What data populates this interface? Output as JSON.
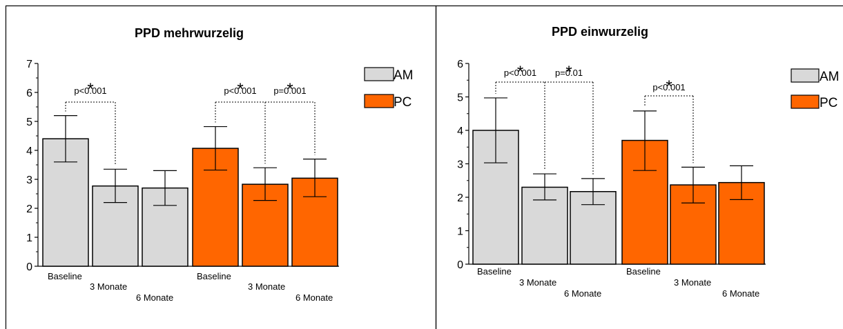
{
  "colors": {
    "am": "#d9d9d9",
    "pc": "#ff6600",
    "axis": "#000000",
    "frame": "#000000"
  },
  "chart_data": [
    {
      "type": "bar",
      "title": "PPD mehrwurzelig",
      "ylim": [
        0,
        7
      ],
      "yticks": [
        "0",
        "1",
        "2",
        "3",
        "4",
        "5",
        "6",
        "7"
      ],
      "legend": {
        "placement": "right",
        "entries": [
          {
            "name": "AM",
            "color": "#d9d9d9"
          },
          {
            "name": "PC",
            "color": "#ff6600"
          }
        ]
      },
      "bars": [
        {
          "label": "Baseline",
          "group": "AM",
          "value": 4.4,
          "err_low": 3.6,
          "err_high": 5.2
        },
        {
          "label": "3 Monate",
          "group": "AM",
          "value": 2.77,
          "err_low": 2.2,
          "err_high": 3.35
        },
        {
          "label": "6 Monate",
          "group": "AM",
          "value": 2.7,
          "err_low": 2.1,
          "err_high": 3.3
        },
        {
          "label": "Baseline",
          "group": "PC",
          "value": 4.07,
          "err_low": 3.32,
          "err_high": 4.82
        },
        {
          "label": "3 Monate",
          "group": "PC",
          "value": 2.83,
          "err_low": 2.27,
          "err_high": 3.4
        },
        {
          "label": "6 Monate",
          "group": "PC",
          "value": 3.04,
          "err_low": 2.4,
          "err_high": 3.7
        }
      ],
      "significance": [
        {
          "from": 0,
          "to": 1,
          "text": "p<0.001",
          "star": "*"
        },
        {
          "from": 3,
          "to": 4,
          "text": "p<0.001",
          "star": "*"
        },
        {
          "from": 4,
          "to": 5,
          "text": "p=0.001",
          "star": "*"
        }
      ]
    },
    {
      "type": "bar",
      "title": "PPD einwurzelig",
      "ylim": [
        0,
        6
      ],
      "yticks": [
        "0",
        "1",
        "2",
        "3",
        "4",
        "5",
        "6"
      ],
      "legend": {
        "placement": "right",
        "entries": [
          {
            "name": "AM",
            "color": "#d9d9d9"
          },
          {
            "name": "PC",
            "color": "#ff6600"
          }
        ]
      },
      "bars": [
        {
          "label": "Baseline",
          "group": "AM",
          "value": 4.0,
          "err_low": 3.03,
          "err_high": 4.97
        },
        {
          "label": "3 Monate",
          "group": "AM",
          "value": 2.3,
          "err_low": 1.92,
          "err_high": 2.7
        },
        {
          "label": "6 Monate",
          "group": "AM",
          "value": 2.17,
          "err_low": 1.78,
          "err_high": 2.56
        },
        {
          "label": "Baseline",
          "group": "PC",
          "value": 3.7,
          "err_low": 2.8,
          "err_high": 4.58
        },
        {
          "label": "3 Monate",
          "group": "PC",
          "value": 2.37,
          "err_low": 1.83,
          "err_high": 2.9
        },
        {
          "label": "6 Monate",
          "group": "PC",
          "value": 2.44,
          "err_low": 1.93,
          "err_high": 2.94
        }
      ],
      "significance": [
        {
          "from": 0,
          "to": 1,
          "text": "p<0.001",
          "star": "*"
        },
        {
          "from": 1,
          "to": 2,
          "text": "p=0.01",
          "star": "*"
        },
        {
          "from": 3,
          "to": 4,
          "text": "p<0.001",
          "star": "*"
        }
      ]
    }
  ]
}
